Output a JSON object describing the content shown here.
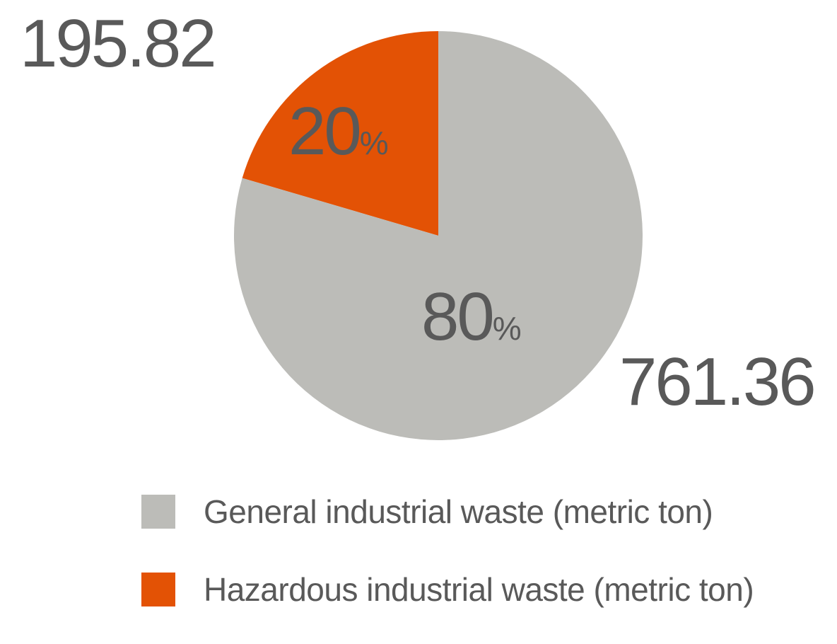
{
  "chart_data": {
    "type": "pie",
    "start_angle_deg": 0,
    "direction": "counterclockwise-for-first-slice",
    "slices": [
      {
        "name": "Hazardous industrial waste (metric ton)",
        "value": 195.82,
        "value_label": "195.82",
        "percent_number": "20",
        "percent_sign": "%",
        "color": "#E35205"
      },
      {
        "name": "General industrial waste (metric ton)",
        "value": 761.36,
        "value_label": "761.36",
        "percent_number": "80",
        "percent_sign": "%",
        "color": "#BCBCB8"
      }
    ],
    "legend": [
      {
        "label": "General industrial waste (metric ton)",
        "color": "#BCBCB8"
      },
      {
        "label": "Hazardous industrial waste (metric ton)",
        "color": "#E35205"
      }
    ],
    "legend_position": "bottom"
  }
}
